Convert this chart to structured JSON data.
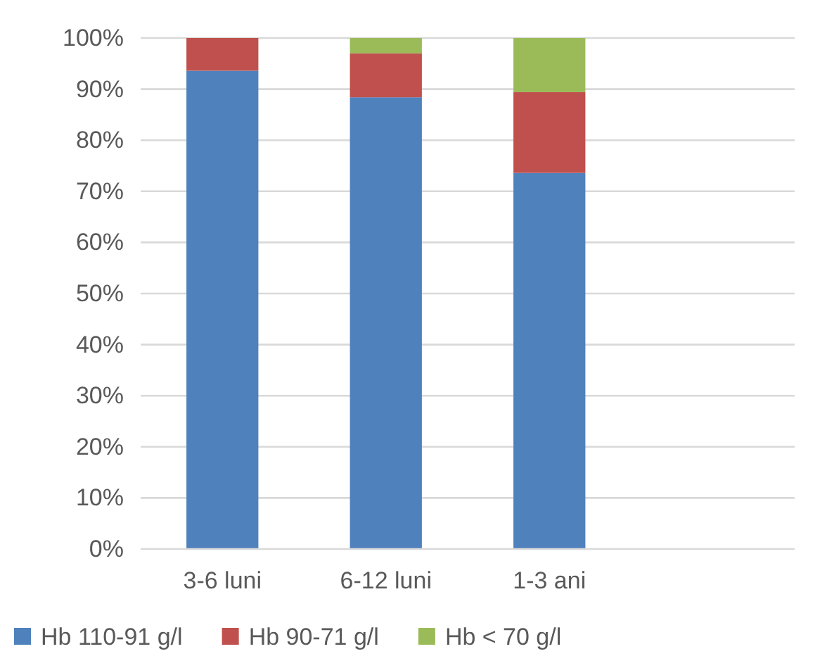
{
  "chart_data": {
    "type": "bar",
    "stacked": true,
    "categories": [
      "3-6 luni",
      "6-12 luni",
      "1-3 ani",
      null
    ],
    "series": [
      {
        "name": "Hb 110-91 g/l",
        "color": "#4f81bd",
        "values": [
          93.6,
          88.4,
          73.6,
          null
        ]
      },
      {
        "name": "Hb 90-71 g/l",
        "color": "#c0504d",
        "values": [
          6.4,
          8.6,
          15.8,
          null
        ]
      },
      {
        "name": "Hb < 70 g/l",
        "color": "#9bbb59",
        "values": [
          0,
          3.0,
          10.6,
          null
        ]
      }
    ],
    "ylim": [
      0,
      100
    ],
    "yticks": [
      {
        "value": 0,
        "label": "0%"
      },
      {
        "value": 10,
        "label": "10%"
      },
      {
        "value": 20,
        "label": "20%"
      },
      {
        "value": 30,
        "label": "30%"
      },
      {
        "value": 40,
        "label": "40%"
      },
      {
        "value": 50,
        "label": "50%"
      },
      {
        "value": 60,
        "label": "60%"
      },
      {
        "value": 70,
        "label": "70%"
      },
      {
        "value": 80,
        "label": "80%"
      },
      {
        "value": 90,
        "label": "90%"
      },
      {
        "value": 100,
        "label": "100%"
      }
    ],
    "grid": "y",
    "legend": "bottom"
  }
}
